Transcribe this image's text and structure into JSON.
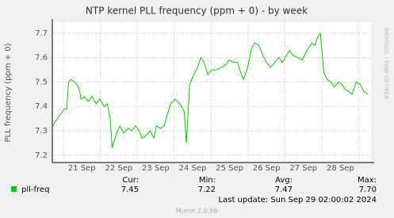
{
  "chart_data": {
    "type": "line",
    "title": "NTP kernel PLL frequency (ppm + 0) - by week",
    "y_label": "PLL frequency (ppm + 0)",
    "xlim": [
      20.7,
      29.33
    ],
    "xticks": [
      {
        "value": 21.5,
        "label": "21 Sep"
      },
      {
        "value": 22.5,
        "label": "22 Sep"
      },
      {
        "value": 23.5,
        "label": "23 Sep"
      },
      {
        "value": 24.5,
        "label": "24 Sep"
      },
      {
        "value": 25.5,
        "label": "25 Sep"
      },
      {
        "value": 26.5,
        "label": "26 Sep"
      },
      {
        "value": 27.5,
        "label": "27 Sep"
      },
      {
        "value": 28.5,
        "label": "28 Sep"
      }
    ],
    "x_gridlines": [
      21,
      22,
      23,
      24,
      25,
      26,
      27,
      28,
      29
    ],
    "ylim": [
      7.17,
      7.745
    ],
    "yticks": [
      7.2,
      7.3,
      7.4,
      7.5,
      7.6,
      7.7
    ],
    "grid": true,
    "x": [
      20.71,
      20.88,
      21.03,
      21.09,
      21.14,
      21.2,
      21.31,
      21.41,
      21.48,
      21.56,
      21.67,
      21.78,
      21.89,
      21.99,
      22.1,
      22.19,
      22.27,
      22.32,
      22.38,
      22.44,
      22.53,
      22.64,
      22.75,
      22.85,
      22.96,
      23.05,
      23.13,
      23.24,
      23.35,
      23.45,
      23.52,
      23.63,
      23.73,
      23.82,
      23.9,
      24.03,
      24.16,
      24.27,
      24.33,
      24.42,
      24.53,
      24.64,
      24.72,
      24.81,
      24.91,
      25.02,
      25.15,
      25.28,
      25.39,
      25.49,
      25.6,
      25.71,
      25.82,
      25.88,
      25.99,
      26.1,
      26.18,
      26.29,
      26.4,
      26.5,
      26.61,
      26.72,
      26.83,
      26.93,
      27.04,
      27.13,
      27.21,
      27.34,
      27.47,
      27.6,
      27.73,
      27.81,
      27.9,
      27.96,
      28.05,
      28.14,
      28.24,
      28.33,
      28.46,
      28.54,
      28.63,
      28.74,
      28.82,
      28.93,
      29.04,
      29.14,
      29.25
    ],
    "series": [
      {
        "name": "pll-freq",
        "color": "#00cc00",
        "values": [
          7.32,
          7.36,
          7.39,
          7.39,
          7.5,
          7.51,
          7.5,
          7.48,
          7.43,
          7.44,
          7.42,
          7.44,
          7.41,
          7.43,
          7.4,
          7.41,
          7.35,
          7.23,
          7.26,
          7.29,
          7.32,
          7.29,
          7.31,
          7.3,
          7.32,
          7.3,
          7.27,
          7.28,
          7.3,
          7.27,
          7.32,
          7.31,
          7.32,
          7.37,
          7.41,
          7.43,
          7.41,
          7.38,
          7.25,
          7.49,
          7.53,
          7.56,
          7.6,
          7.58,
          7.53,
          7.55,
          7.55,
          7.56,
          7.57,
          7.59,
          7.58,
          7.58,
          7.53,
          7.51,
          7.56,
          7.64,
          7.66,
          7.65,
          7.61,
          7.58,
          7.56,
          7.58,
          7.6,
          7.58,
          7.61,
          7.63,
          7.61,
          7.6,
          7.59,
          7.63,
          7.66,
          7.65,
          7.69,
          7.7,
          7.54,
          7.51,
          7.5,
          7.48,
          7.5,
          7.49,
          7.47,
          7.46,
          7.45,
          7.5,
          7.49,
          7.46,
          7.45
        ],
        "stats": [
          {
            "name": "Cur:",
            "value": "7.45"
          },
          {
            "name": "Min:",
            "value": "7.22"
          },
          {
            "name": "Avg:",
            "value": "7.47"
          },
          {
            "name": "Max:",
            "value": "7.70"
          }
        ]
      }
    ],
    "last_update": "Last update: Sun Sep 29 02:00:02 2024",
    "watermark": "RRDTOOL / TOBI OETIKER",
    "footer": "Munin 2.0.56"
  }
}
